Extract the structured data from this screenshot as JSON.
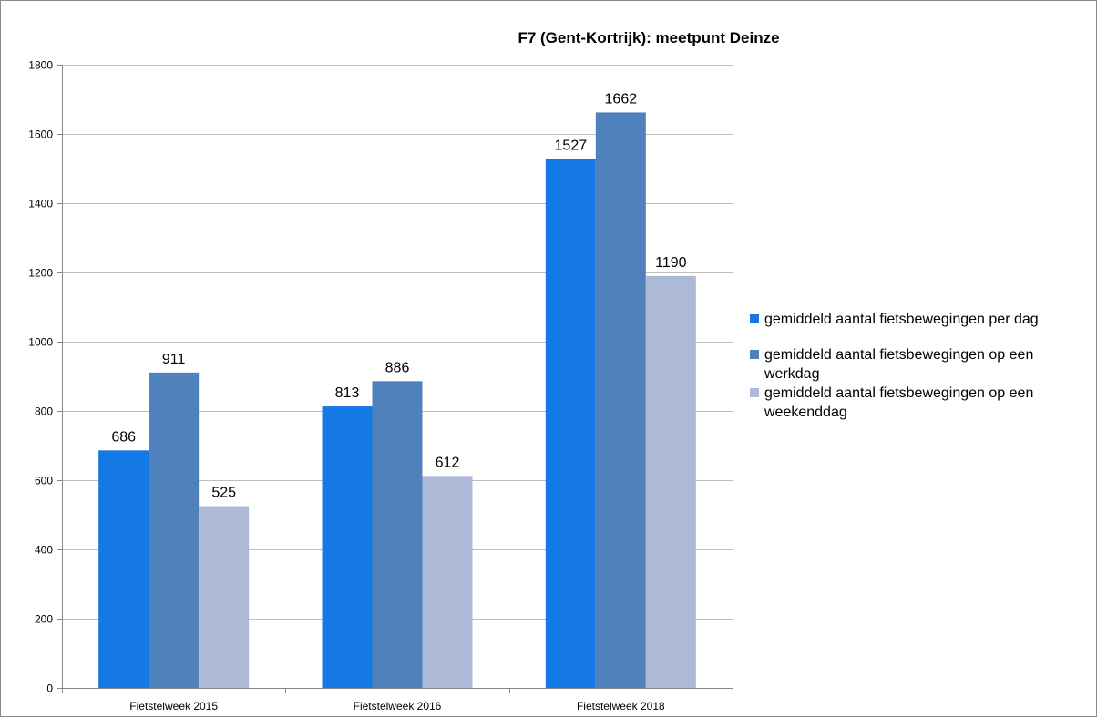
{
  "chart_data": {
    "type": "bar",
    "title": "F7 (Gent-Kortrijk): meetpunt Deinze",
    "xlabel": "",
    "ylabel": "",
    "categories": [
      "Fietstelweek 2015",
      "Fietstelweek 2016",
      "Fietstelweek 2018"
    ],
    "series": [
      {
        "name": "gemiddeld aantal fietsbewegingen per dag",
        "values": [
          686,
          813,
          1527
        ],
        "color": "#1479e4"
      },
      {
        "name": "gemiddeld aantal fietsbewegingen op een werkdag",
        "values": [
          911,
          886,
          1662
        ],
        "color": "#4f81bd"
      },
      {
        "name": "gemiddeld aantal fietsbewegingen op een weekenddag",
        "values": [
          525,
          612,
          1190
        ],
        "color": "#acbad8"
      }
    ],
    "ylim": [
      0,
      1800
    ],
    "yticks": [
      0,
      200,
      400,
      600,
      800,
      1000,
      1200,
      1400,
      1600,
      1800
    ],
    "grid": true,
    "data_labels": true,
    "legend_position": "right"
  },
  "legend": {
    "items": [
      "gemiddeld aantal fietsbewegingen per dag",
      "gemiddeld aantal fietsbewegingen op een werkdag",
      "gemiddeld aantal fietsbewegingen op een weekenddag"
    ]
  },
  "colors": {
    "grid": "#bfbfbf",
    "axis": "#868686",
    "frame": "#8a8a8a"
  }
}
